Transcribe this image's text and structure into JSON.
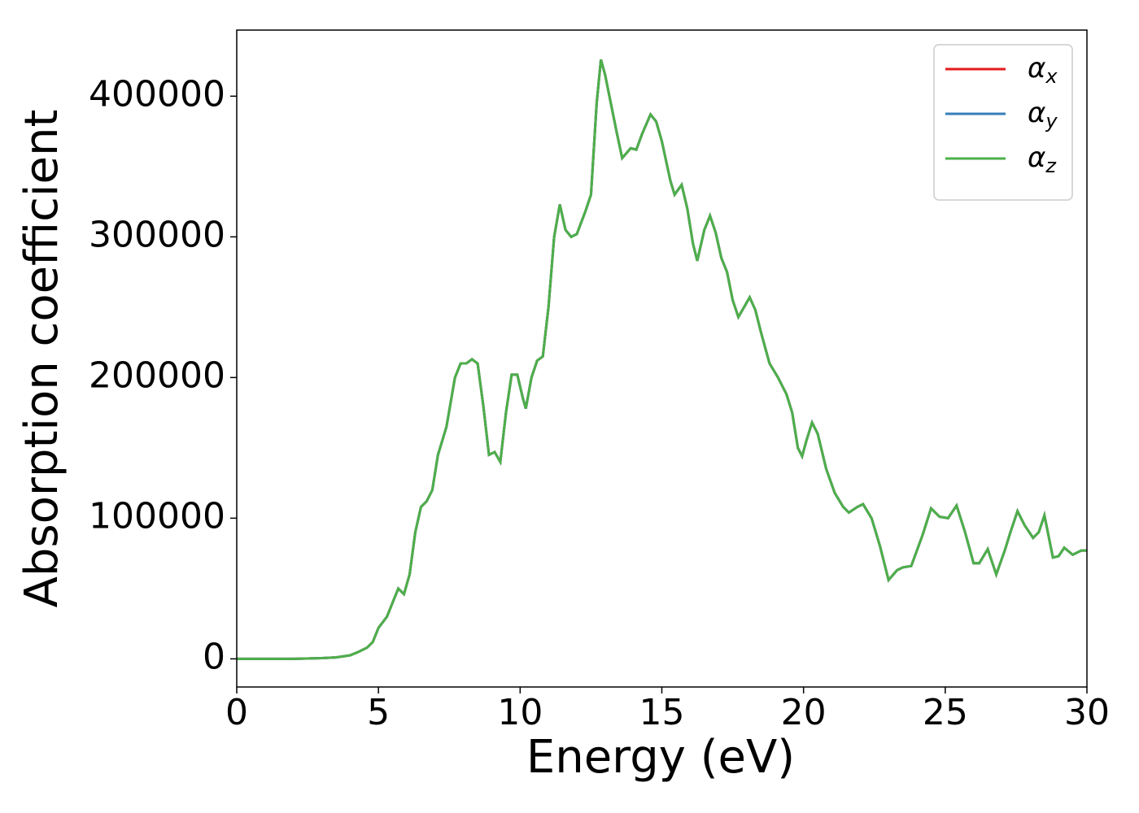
{
  "chart_data": {
    "type": "line",
    "xlabel": "Energy (eV)",
    "ylabel": "Absorption coefficient",
    "x": [
      0,
      2,
      3,
      3.5,
      4,
      4.3,
      4.6,
      4.8,
      5,
      5.3,
      5.5,
      5.7,
      5.9,
      6.1,
      6.3,
      6.5,
      6.7,
      6.9,
      7.1,
      7.4,
      7.7,
      7.9,
      8.1,
      8.3,
      8.5,
      8.7,
      8.9,
      9.1,
      9.3,
      9.5,
      9.7,
      9.9,
      10.1,
      10.2,
      10.4,
      10.6,
      10.8,
      11,
      11.2,
      11.4,
      11.6,
      11.8,
      12,
      12.3,
      12.5,
      12.7,
      12.85,
      13,
      13.2,
      13.4,
      13.6,
      13.9,
      14.1,
      14.3,
      14.6,
      14.8,
      15,
      15.3,
      15.45,
      15.7,
      15.9,
      16.1,
      16.25,
      16.5,
      16.7,
      16.9,
      17.1,
      17.3,
      17.5,
      17.7,
      17.9,
      18.1,
      18.3,
      18.5,
      18.8,
      19.1,
      19.4,
      19.6,
      19.8,
      19.95,
      20.1,
      20.3,
      20.5,
      20.8,
      21.1,
      21.4,
      21.6,
      21.9,
      22.1,
      22.4,
      22.7,
      23,
      23.3,
      23.5,
      23.8,
      24.2,
      24.5,
      24.8,
      25.1,
      25.4,
      25.7,
      26,
      26.2,
      26.5,
      26.8,
      27.1,
      27.3,
      27.55,
      27.8,
      28.1,
      28.3,
      28.5,
      28.8,
      29,
      29.2,
      29.5,
      29.8,
      30
    ],
    "series": [
      {
        "name": "αx",
        "color": "#e41a1c",
        "values": [
          0,
          0,
          500,
          1000,
          2500,
          5000,
          8000,
          12000,
          22000,
          30000,
          40000,
          50000,
          46000,
          60000,
          90000,
          108000,
          112000,
          120000,
          145000,
          165000,
          200000,
          210000,
          210000,
          213000,
          210000,
          180000,
          145000,
          147000,
          140000,
          175000,
          202000,
          202000,
          185000,
          178000,
          200000,
          212000,
          215000,
          250000,
          300000,
          323000,
          305000,
          300000,
          302000,
          318000,
          330000,
          395000,
          426000,
          415000,
          395000,
          375000,
          356000,
          363000,
          362000,
          373000,
          387000,
          382000,
          368000,
          340000,
          330000,
          337000,
          320000,
          295000,
          283000,
          305000,
          315000,
          303000,
          285000,
          275000,
          255000,
          243000,
          250000,
          257000,
          248000,
          232000,
          210000,
          200000,
          188000,
          175000,
          150000,
          144000,
          155000,
          168000,
          160000,
          135000,
          118000,
          108000,
          104000,
          108000,
          110000,
          100000,
          80000,
          56000,
          63000,
          65000,
          66000,
          88000,
          107000,
          101000,
          100000,
          109000,
          90000,
          68000,
          68000,
          78000,
          60000,
          77000,
          90000,
          105000,
          95000,
          86000,
          90000,
          102000,
          72000,
          73000,
          79000,
          74000,
          77000,
          77000
        ]
      },
      {
        "name": "αy",
        "color": "#377eb8",
        "values": [
          0,
          0,
          500,
          1000,
          2500,
          5000,
          8000,
          12000,
          22000,
          30000,
          40000,
          50000,
          46000,
          60000,
          90000,
          108000,
          112000,
          120000,
          145000,
          165000,
          200000,
          210000,
          210000,
          213000,
          210000,
          180000,
          145000,
          147000,
          140000,
          175000,
          202000,
          202000,
          185000,
          178000,
          200000,
          212000,
          215000,
          250000,
          300000,
          323000,
          305000,
          300000,
          302000,
          318000,
          330000,
          395000,
          426000,
          415000,
          395000,
          375000,
          356000,
          363000,
          362000,
          373000,
          387000,
          382000,
          368000,
          340000,
          330000,
          337000,
          320000,
          295000,
          283000,
          305000,
          315000,
          303000,
          285000,
          275000,
          255000,
          243000,
          250000,
          257000,
          248000,
          232000,
          210000,
          200000,
          188000,
          175000,
          150000,
          144000,
          155000,
          168000,
          160000,
          135000,
          118000,
          108000,
          104000,
          108000,
          110000,
          100000,
          80000,
          56000,
          63000,
          65000,
          66000,
          88000,
          107000,
          101000,
          100000,
          109000,
          90000,
          68000,
          68000,
          78000,
          60000,
          77000,
          90000,
          105000,
          95000,
          86000,
          90000,
          102000,
          72000,
          73000,
          79000,
          74000,
          77000,
          77000
        ]
      },
      {
        "name": "αz",
        "color": "#4daf4a",
        "values": [
          0,
          0,
          500,
          1000,
          2500,
          5000,
          8000,
          12000,
          22000,
          30000,
          40000,
          50000,
          46000,
          60000,
          90000,
          108000,
          112000,
          120000,
          145000,
          165000,
          200000,
          210000,
          210000,
          213000,
          210000,
          180000,
          145000,
          147000,
          140000,
          175000,
          202000,
          202000,
          185000,
          178000,
          200000,
          212000,
          215000,
          250000,
          300000,
          323000,
          305000,
          300000,
          302000,
          318000,
          330000,
          395000,
          426000,
          415000,
          395000,
          375000,
          356000,
          363000,
          362000,
          373000,
          387000,
          382000,
          368000,
          340000,
          330000,
          337000,
          320000,
          295000,
          283000,
          305000,
          315000,
          303000,
          285000,
          275000,
          255000,
          243000,
          250000,
          257000,
          248000,
          232000,
          210000,
          200000,
          188000,
          175000,
          150000,
          144000,
          155000,
          168000,
          160000,
          135000,
          118000,
          108000,
          104000,
          108000,
          110000,
          100000,
          80000,
          56000,
          63000,
          65000,
          66000,
          88000,
          107000,
          101000,
          100000,
          109000,
          90000,
          68000,
          68000,
          78000,
          60000,
          77000,
          90000,
          105000,
          95000,
          86000,
          90000,
          102000,
          72000,
          73000,
          79000,
          74000,
          77000,
          77000
        ]
      }
    ],
    "xlim": [
      0,
      30
    ],
    "xticks": [
      0,
      5,
      10,
      15,
      20,
      25,
      30
    ],
    "ylim": [
      -20000,
      447000
    ],
    "yticks": [
      0,
      100000,
      200000,
      300000,
      400000
    ],
    "legend": "upper right",
    "grid": false
  }
}
